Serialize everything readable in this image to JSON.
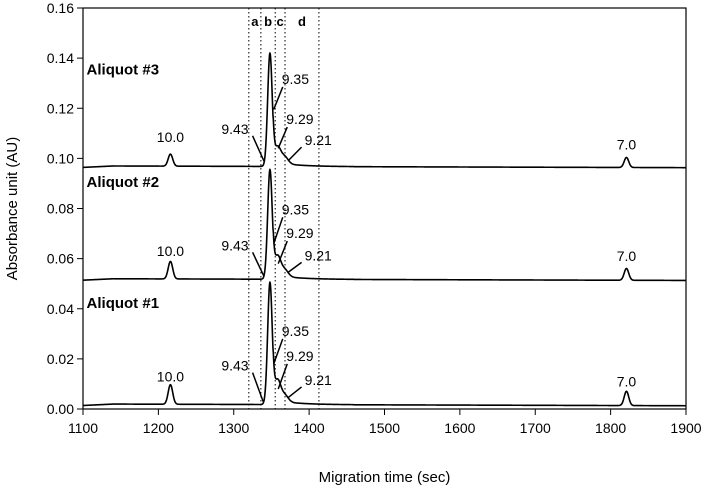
{
  "chart_data": {
    "type": "line",
    "xlabel": "Migration time (sec)",
    "ylabel": "Absorbance unit (AU)",
    "xlim": [
      1100,
      1900
    ],
    "ylim": [
      0,
      0.16
    ],
    "x_ticks": [
      "1100",
      "1200",
      "1300",
      "1400",
      "1500",
      "1600",
      "1700",
      "1800",
      "1900"
    ],
    "y_ticks": [
      "0.00",
      "0.02",
      "0.04",
      "0.06",
      "0.08",
      "0.10",
      "0.12",
      "0.14",
      "0.16"
    ],
    "grid": false,
    "legend": "none",
    "regions": {
      "boundaries": [
        1320,
        1336,
        1355,
        1368,
        1413
      ],
      "labels": [
        "a",
        "b",
        "c",
        "d"
      ]
    },
    "series": [
      {
        "name": "Aliquot #1",
        "baseline": 0.002,
        "peaks": [
          {
            "x": 1216,
            "height": 0.0078,
            "width": 3,
            "label": "10.0"
          },
          {
            "x": 1348,
            "height": 0.0485,
            "width": 3,
            "label": ""
          },
          {
            "x": 1358,
            "height": 0.008,
            "width": 4,
            "label": "9.29"
          },
          {
            "x": 1367,
            "height": 0.003,
            "width": 5,
            "label": "9.21"
          },
          {
            "x": 1821,
            "height": 0.0057,
            "width": 3,
            "label": "7.0"
          }
        ],
        "annotations": [
          {
            "text": "9.43",
            "x": 1339,
            "y": 0.003,
            "x0": 1325,
            "y0": 0.0145
          },
          {
            "text": "9.35",
            "x": 1353,
            "y": 0.018,
            "x0": 1365,
            "y0": 0.028
          },
          {
            "text": "9.29",
            "x": 1359,
            "y": 0.008,
            "x0": 1371,
            "y0": 0.018
          },
          {
            "text": "9.21",
            "x": 1372,
            "y": 0.0045,
            "x0": 1390,
            "y0": 0.0088
          },
          {
            "text": "10.0",
            "x": 1216,
            "y": 0.011,
            "x0": 1216,
            "y0": 0.011
          },
          {
            "text": "7.0",
            "x": 1821,
            "y": 0.009,
            "x0": 1821,
            "y0": 0.009
          }
        ]
      },
      {
        "name": "Aliquot #2",
        "baseline": 0.052,
        "peaks": [
          {
            "x": 1216,
            "height": 0.007,
            "width": 3,
            "label": "10.0"
          },
          {
            "x": 1348,
            "height": 0.0435,
            "width": 3,
            "label": ""
          },
          {
            "x": 1358,
            "height": 0.0075,
            "width": 4,
            "label": "9.29"
          },
          {
            "x": 1367,
            "height": 0.003,
            "width": 5,
            "label": "9.21"
          },
          {
            "x": 1821,
            "height": 0.0047,
            "width": 3,
            "label": "7.0"
          }
        ],
        "annotations": [
          {
            "text": "9.43",
            "x": 1340,
            "y": 0.053,
            "x0": 1325,
            "y0": 0.0625
          },
          {
            "text": "9.35",
            "x": 1353,
            "y": 0.066,
            "x0": 1365,
            "y0": 0.0765
          },
          {
            "text": "9.29",
            "x": 1359,
            "y": 0.058,
            "x0": 1371,
            "y0": 0.067
          },
          {
            "text": "9.21",
            "x": 1372,
            "y": 0.0545,
            "x0": 1390,
            "y0": 0.0585
          },
          {
            "text": "10.0",
            "x": 1216,
            "y": 0.061,
            "x0": 1216,
            "y0": 0.061
          },
          {
            "text": "7.0",
            "x": 1821,
            "y": 0.059,
            "x0": 1821,
            "y0": 0.059
          }
        ]
      },
      {
        "name": "Aliquot #3",
        "baseline": 0.097,
        "peaks": [
          {
            "x": 1216,
            "height": 0.0048,
            "width": 3,
            "label": "10.0"
          },
          {
            "x": 1348,
            "height": 0.045,
            "width": 3,
            "label": ""
          },
          {
            "x": 1358,
            "height": 0.006,
            "width": 4,
            "label": "9.29"
          },
          {
            "x": 1367,
            "height": 0.003,
            "width": 5,
            "label": "9.21"
          },
          {
            "x": 1821,
            "height": 0.004,
            "width": 3,
            "label": "7.0"
          }
        ],
        "annotations": [
          {
            "text": "9.43",
            "x": 1340,
            "y": 0.099,
            "x0": 1325,
            "y0": 0.109
          },
          {
            "text": "9.35",
            "x": 1353,
            "y": 0.1195,
            "x0": 1365,
            "y0": 0.1285
          },
          {
            "text": "9.29",
            "x": 1359,
            "y": 0.104,
            "x0": 1371,
            "y0": 0.1125
          },
          {
            "text": "9.21",
            "x": 1372,
            "y": 0.099,
            "x0": 1390,
            "y0": 0.1045
          },
          {
            "text": "10.0",
            "x": 1216,
            "y": 0.1065,
            "x0": 1216,
            "y0": 0.1065
          },
          {
            "text": "7.0",
            "x": 1821,
            "y": 0.1035,
            "x0": 1821,
            "y0": 0.1035
          }
        ]
      }
    ],
    "trace_labels": [
      {
        "text": "Aliquot #3",
        "x": 1110,
        "y": 0.1335
      },
      {
        "text": "Aliquot #2",
        "x": 1110,
        "y": 0.0885
      },
      {
        "text": "Aliquot #1",
        "x": 1110,
        "y": 0.0402
      }
    ]
  }
}
